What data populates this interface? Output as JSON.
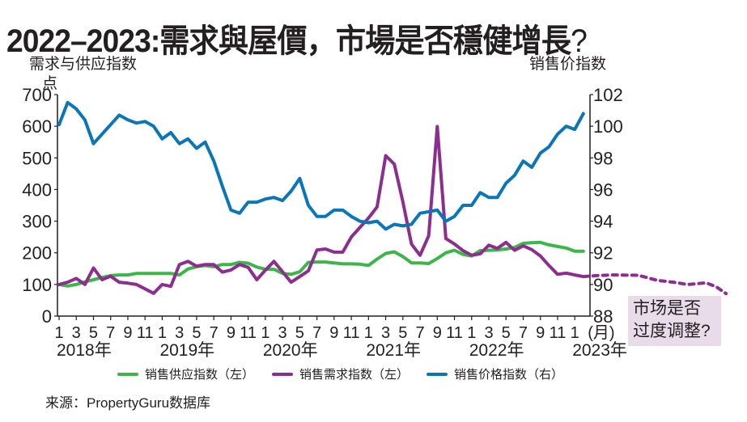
{
  "title": "2022–2023:需求與屋價，市場是否穩健增長",
  "title_qmark": "?",
  "note": "市场是否\n过度调整?",
  "source": "来源：PropertyGuru数据库",
  "colors": {
    "supply": "#3db54a",
    "demand": "#8c2e90",
    "price": "#0b75ba"
  },
  "chart_data": {
    "type": "line",
    "title": "2022–2023:需求與屋價，市場是否穩健增長?",
    "ylabel_left": "需求与供应指数",
    "ylabel_left_unit": "点",
    "ylabel_right": "销售价指数",
    "ylim_left": [
      0,
      700
    ],
    "ylim_right": [
      88,
      102
    ],
    "yticks_left": [
      0,
      100,
      200,
      300,
      400,
      500,
      600,
      700
    ],
    "yticks_right": [
      88,
      90,
      92,
      94,
      96,
      98,
      100,
      102
    ],
    "x_start": "2018-01",
    "x_end": "2023-02",
    "x_tick_labels": [
      "1",
      "3",
      "5",
      "7",
      "9",
      "11",
      "1",
      "3",
      "5",
      "7",
      "9",
      "11",
      "1",
      "3",
      "5",
      "7",
      "9",
      "11",
      "1",
      "3",
      "5",
      "7",
      "9",
      "11",
      "1",
      "3",
      "5",
      "7",
      "9",
      "11",
      "1"
    ],
    "x_unit_label": "(月)",
    "year_labels": [
      {
        "label": "2018年",
        "month_index": 0
      },
      {
        "label": "2019年",
        "month_index": 12
      },
      {
        "label": "2020年",
        "month_index": 24
      },
      {
        "label": "2021年",
        "month_index": 36
      },
      {
        "label": "2022年",
        "month_index": 48
      },
      {
        "label": "2023年",
        "month_index": 60
      }
    ],
    "grid": false,
    "legend_position": "bottom",
    "series": [
      {
        "name": "销售供应指数（左）",
        "key": "supply",
        "axis": "left",
        "values": [
          100,
          95,
          100,
          108,
          115,
          122,
          128,
          130,
          130,
          135,
          135,
          135,
          135,
          135,
          130,
          149,
          156,
          160,
          156,
          163,
          163,
          170,
          167,
          155,
          148,
          148,
          135,
          132,
          140,
          170,
          171,
          171,
          168,
          165,
          165,
          164,
          160,
          180,
          198,
          203,
          188,
          168,
          168,
          166,
          182,
          200,
          208,
          195,
          190,
          207,
          208,
          209,
          212,
          217,
          230,
          232,
          233,
          225,
          220,
          215,
          205,
          205
        ]
      },
      {
        "name": "销售需求指数（左）",
        "key": "demand",
        "axis": "left",
        "values": [
          100,
          107,
          119,
          100,
          152,
          115,
          126,
          107,
          104,
          100,
          86,
          72,
          100,
          94,
          163,
          173,
          158,
          163,
          163,
          139,
          146,
          163,
          154,
          115,
          145,
          173,
          140,
          107,
          125,
          143,
          209,
          212,
          202,
          202,
          250,
          280,
          310,
          345,
          507,
          480,
          361,
          228,
          192,
          254,
          599,
          245,
          228,
          207,
          192,
          197,
          224,
          214,
          233,
          208,
          222,
          210,
          190,
          160,
          132,
          136,
          130,
          125
        ]
      },
      {
        "name": "销售价格指数（右）",
        "key": "price",
        "axis": "right",
        "values": [
          100.1,
          101.5,
          101.1,
          100.4,
          98.9,
          99.5,
          100.1,
          100.7,
          100.4,
          100.2,
          100.3,
          100.0,
          99.2,
          99.6,
          98.9,
          99.2,
          98.6,
          99.0,
          97.8,
          96.2,
          94.7,
          94.5,
          95.2,
          95.2,
          95.4,
          95.5,
          95.3,
          95.9,
          96.7,
          95.0,
          94.3,
          94.3,
          94.7,
          94.7,
          94.3,
          94.0,
          93.9,
          94.0,
          93.5,
          93.8,
          93.7,
          93.8,
          94.5,
          94.6,
          94.7,
          94.0,
          94.3,
          95.0,
          95.0,
          95.8,
          95.5,
          95.5,
          96.4,
          96.9,
          97.8,
          97.4,
          98.3,
          98.7,
          99.5,
          100.0,
          99.8,
          100.8
        ]
      }
    ],
    "projection": {
      "series": "demand",
      "style": "dotted",
      "points": [
        [
          61,
          125
        ],
        [
          62.5,
          128
        ],
        [
          64.3,
          130
        ],
        [
          67.4,
          129
        ],
        [
          69.6,
          113
        ],
        [
          71.5,
          107
        ],
        [
          73.1,
          100
        ],
        [
          75.3,
          105
        ],
        [
          76.5,
          92
        ],
        [
          77.6,
          71
        ]
      ]
    }
  }
}
